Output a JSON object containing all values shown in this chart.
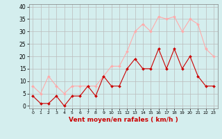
{
  "hours": [
    0,
    1,
    2,
    3,
    4,
    5,
    6,
    7,
    8,
    9,
    10,
    11,
    12,
    13,
    14,
    15,
    16,
    17,
    18,
    19,
    20,
    21,
    22,
    23
  ],
  "vent_moyen": [
    4,
    1,
    1,
    4,
    0,
    4,
    4,
    8,
    4,
    12,
    8,
    8,
    15,
    19,
    15,
    15,
    23,
    15,
    23,
    15,
    20,
    12,
    8,
    8
  ],
  "rafales": [
    8,
    5,
    12,
    8,
    5,
    8,
    8,
    8,
    8,
    12,
    16,
    16,
    22,
    30,
    33,
    30,
    36,
    35,
    36,
    30,
    35,
    33,
    23,
    20
  ],
  "color_moyen": "#cc0000",
  "color_rafales": "#ffaaaa",
  "bg_color": "#d4eeee",
  "grid_color": "#bbbbbb",
  "xlabel": "Vent moyen/en rafales ( km/h )",
  "xlabel_color": "#cc0000",
  "ylabel_ticks": [
    0,
    5,
    10,
    15,
    20,
    25,
    30,
    35,
    40
  ],
  "xlim": [
    -0.5,
    23.5
  ],
  "ylim": [
    -1,
    41
  ],
  "title": ""
}
